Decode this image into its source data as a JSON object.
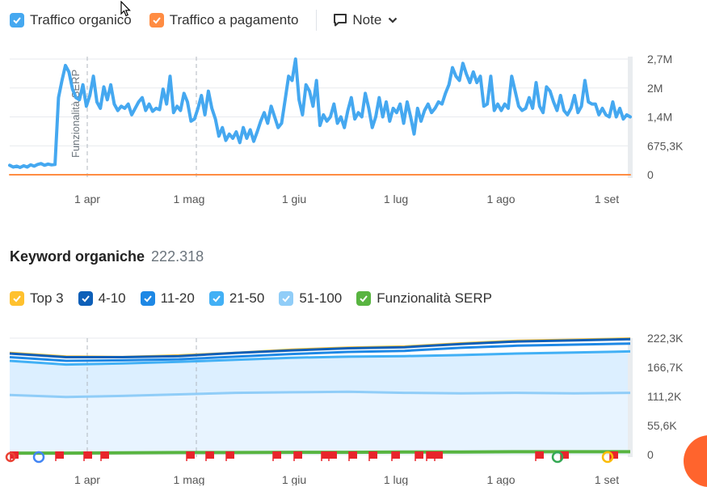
{
  "top_legend": {
    "organic": {
      "label": "Traffico organico",
      "color": "#45a8f0"
    },
    "paid": {
      "label": "Traffico a pagamento",
      "color": "#ff8c42"
    },
    "note": {
      "label": "Note"
    }
  },
  "keyword_section": {
    "title": "Keyword organiche",
    "count": "222.318"
  },
  "kw_legend": [
    {
      "label": "Top 3",
      "color": "#ffc12e"
    },
    {
      "label": "4-10",
      "color": "#0d5fb8"
    },
    {
      "label": "11-20",
      "color": "#1e88e5"
    },
    {
      "label": "21-50",
      "color": "#42b0f5"
    },
    {
      "label": "51-100",
      "color": "#90cdf8"
    },
    {
      "label": "Funzionalità SERP",
      "color": "#58b440"
    }
  ],
  "chart_data": [
    {
      "type": "line",
      "x_labels": [
        "1 apr",
        "1 mag",
        "1 giu",
        "1 lug",
        "1 ago",
        "1 set"
      ],
      "y_tick_labels": [
        "0",
        "675,3K",
        "1,4M",
        "2M",
        "2,7M"
      ],
      "ylim": [
        0,
        2700000
      ],
      "annotation": "Funzionalità SERP",
      "grid": true,
      "series": [
        {
          "name": "Traffico organico",
          "color": "#45a8f0",
          "values": [
            220000,
            180000,
            200000,
            170000,
            210000,
            180000,
            230000,
            200000,
            240000,
            260000,
            220000,
            250000,
            230000,
            240000,
            1800000,
            2200000,
            2550000,
            2400000,
            2000000,
            1800000,
            1750000,
            2100000,
            1600000,
            1850000,
            2300000,
            1700000,
            1550000,
            2050000,
            1750000,
            2100000,
            1650000,
            1500000,
            1600000,
            1550000,
            1650000,
            1400000,
            1550000,
            1700000,
            1800000,
            1500000,
            1650000,
            1480000,
            1550000,
            1520000,
            2000000,
            1650000,
            2300000,
            1450000,
            1600000,
            1500000,
            1900000,
            1700000,
            1250000,
            1300000,
            1550000,
            1850000,
            1400000,
            1950000,
            1550000,
            1300000,
            900000,
            1100000,
            800000,
            950000,
            850000,
            1000000,
            750000,
            1100000,
            850000,
            1050000,
            780000,
            1000000,
            1250000,
            1450000,
            1200000,
            1600000,
            1350000,
            1100000,
            1200000,
            1750000,
            2300000,
            2200000,
            2700000,
            1750000,
            1400000,
            2100000,
            1950000,
            1600000,
            2200000,
            1150000,
            1400000,
            1250000,
            1350000,
            1650000,
            1200000,
            1350000,
            1100000,
            1500000,
            1800000,
            1300000,
            1450000,
            1350000,
            1900000,
            1550000,
            1100000,
            1350000,
            1800000,
            1350000,
            1700000,
            1250000,
            1550000,
            1450000,
            1650000,
            1200000,
            1700000,
            1350000,
            950000,
            1550000,
            1250000,
            1500000,
            1650000,
            1450000,
            1550000,
            1700000,
            1650000,
            1900000,
            2100000,
            2500000,
            2300000,
            2200000,
            2600000,
            2350000,
            2150000,
            2400000,
            2150000,
            2300000,
            1600000,
            1650000,
            2300000,
            1500000,
            1650000,
            1500000,
            1650000,
            1550000,
            2300000,
            1950000,
            1600000,
            1500000,
            1550000,
            1800000,
            1550000,
            2150000,
            1600000,
            1450000,
            2050000,
            1950000,
            1700000,
            1500000,
            1850000,
            1500000,
            1400000,
            1550000,
            1850000,
            1450000,
            1600000,
            2200000,
            1700000,
            1650000,
            1650000,
            1400000,
            1550000,
            1400000,
            1350000,
            1700000,
            1350000,
            1550000,
            1300000,
            1400000,
            1350000
          ]
        },
        {
          "name": "Traffico a pagamento",
          "color": "#ff8c42",
          "values": [
            0,
            0
          ]
        }
      ]
    },
    {
      "type": "area",
      "x_labels": [
        "1 apr",
        "1 mag",
        "1 giu",
        "1 lug",
        "1 ago",
        "1 set"
      ],
      "y_tick_labels": [
        "0",
        "55,6K",
        "111,2K",
        "166,7K",
        "222,3K"
      ],
      "ylim": [
        0,
        222300
      ],
      "grid": true,
      "series": [
        {
          "name": "Top 3",
          "color": "#ffc12e",
          "values": [
            195000,
            188000,
            187000,
            190000,
            195000,
            201000,
            205000,
            207000,
            213000,
            218000,
            220000,
            222300
          ]
        },
        {
          "name": "4-10",
          "color": "#0d5fb8",
          "values": [
            193000,
            186000,
            186000,
            188000,
            194000,
            199000,
            203000,
            205000,
            211000,
            216000,
            218000,
            220500
          ]
        },
        {
          "name": "11-20",
          "color": "#1e88e5",
          "values": [
            186000,
            179000,
            180000,
            182000,
            187000,
            192000,
            196000,
            198000,
            204000,
            208000,
            210000,
            212000
          ]
        },
        {
          "name": "21-50",
          "color": "#42b0f5",
          "values": [
            179000,
            172000,
            174000,
            177000,
            181000,
            185000,
            187000,
            188000,
            190000,
            193000,
            195000,
            197000
          ]
        },
        {
          "name": "51-100",
          "color": "#90cdf8",
          "values": [
            114000,
            110000,
            112000,
            115000,
            118000,
            119000,
            120000,
            118000,
            117000,
            118000,
            117000,
            118000
          ]
        },
        {
          "name": "Funzionalità SERP",
          "color": "#58b440",
          "values": [
            3000,
            3000,
            3500,
            4000,
            4000,
            4500,
            4500,
            5000,
            5000,
            5500,
            5500,
            5500
          ]
        }
      ],
      "markers": [
        18,
        74,
        109,
        130,
        236,
        260,
        285,
        343,
        369,
        403,
        412,
        437,
        462,
        490,
        519,
        533,
        543,
        668,
        699,
        760
      ]
    }
  ]
}
